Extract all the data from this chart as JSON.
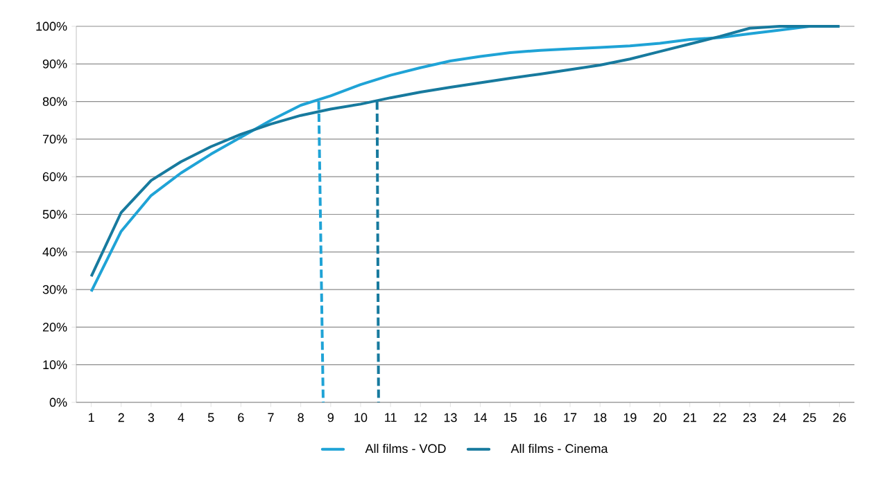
{
  "chart_data": {
    "type": "line",
    "x": [
      1,
      2,
      3,
      4,
      5,
      6,
      7,
      8,
      9,
      10,
      11,
      12,
      13,
      14,
      15,
      16,
      17,
      18,
      19,
      20,
      21,
      22,
      23,
      24,
      25,
      26
    ],
    "xlim": [
      0.5,
      26.5
    ],
    "xticks": [
      1,
      2,
      3,
      4,
      5,
      6,
      7,
      8,
      9,
      10,
      11,
      12,
      13,
      14,
      15,
      16,
      17,
      18,
      19,
      20,
      21,
      22,
      23,
      24,
      25,
      26
    ],
    "ylim": [
      0,
      100
    ],
    "yticks": [
      {
        "value": 0,
        "label": "0%"
      },
      {
        "value": 10,
        "label": "10%"
      },
      {
        "value": 20,
        "label": "20%"
      },
      {
        "value": 30,
        "label": "30%"
      },
      {
        "value": 40,
        "label": "40%"
      },
      {
        "value": 50,
        "label": "50%"
      },
      {
        "value": 60,
        "label": "60%"
      },
      {
        "value": 70,
        "label": "70%"
      },
      {
        "value": 80,
        "label": "80%"
      },
      {
        "value": 90,
        "label": "90%"
      },
      {
        "value": 100,
        "label": "100%"
      }
    ],
    "grid": "y",
    "legend": "bottom",
    "marker": "none",
    "series": [
      {
        "name": "All films - VOD",
        "color": "#1fa3d6",
        "line_style": "solid",
        "values": [
          29.5,
          45.5,
          55,
          61,
          66,
          70.5,
          75,
          79,
          81.5,
          84.5,
          87,
          89,
          90.8,
          92,
          93,
          93.6,
          94,
          94.4,
          94.8,
          95.5,
          96.5,
          97,
          98,
          99,
          100,
          100
        ]
      },
      {
        "name": "All films - Cinema",
        "color": "#177a9e",
        "line_style": "solid",
        "values": [
          33.5,
          50.5,
          59,
          64,
          68,
          71.3,
          74,
          76.3,
          78,
          79.3,
          81,
          82.5,
          83.8,
          85,
          86.2,
          87.3,
          88.5,
          89.7,
          91.3,
          93.3,
          95.3,
          97.3,
          99.5,
          100,
          100,
          100
        ]
      },
      {
        "color": "#1fa3d6",
        "line_style": "dashed",
        "x": [
          8.6,
          8.75
        ],
        "values": [
          80,
          0
        ]
      },
      {
        "color": "#177a9e",
        "line_style": "dashed",
        "x": [
          10.55,
          10.6
        ],
        "values": [
          80,
          0
        ]
      }
    ]
  }
}
